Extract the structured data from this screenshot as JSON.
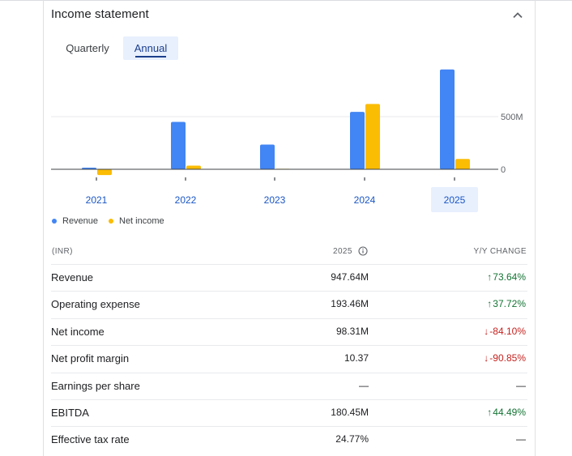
{
  "title": "Income statement",
  "tabs": [
    {
      "label": "Quarterly",
      "selected": false
    },
    {
      "label": "Annual",
      "selected": true
    }
  ],
  "legend": [
    {
      "label": "Revenue",
      "color": "#4285f4"
    },
    {
      "label": "Net income",
      "color": "#fbbc04"
    }
  ],
  "chart_data": {
    "type": "bar",
    "categories": [
      "2021",
      "2022",
      "2023",
      "2024",
      "2025"
    ],
    "selected_category": "2025",
    "series": [
      {
        "name": "Revenue",
        "color": "#4285f4",
        "values": [
          15,
          450,
          235,
          545,
          947.64
        ]
      },
      {
        "name": "Net income",
        "color": "#fbbc04",
        "values": [
          -55,
          35,
          5,
          620,
          98.31
        ]
      }
    ],
    "y_ticks": [
      {
        "value": 500,
        "label": "500M"
      },
      {
        "value": 0,
        "label": "0"
      }
    ],
    "ylim": [
      -70,
      960
    ],
    "units": "M"
  },
  "table": {
    "headers": {
      "label": "(INR)",
      "value": "2025",
      "change": "Y/Y CHANGE"
    },
    "rows": [
      {
        "label": "Revenue",
        "value": "947.64M",
        "change": "73.64%",
        "direction": "up"
      },
      {
        "label": "Operating expense",
        "value": "193.46M",
        "change": "37.72%",
        "direction": "up"
      },
      {
        "label": "Net income",
        "value": "98.31M",
        "change": "-84.10%",
        "direction": "down"
      },
      {
        "label": "Net profit margin",
        "value": "10.37",
        "change": "-90.85%",
        "direction": "down"
      },
      {
        "label": "Earnings per share",
        "value": "—",
        "change": "—",
        "direction": "none"
      },
      {
        "label": "EBITDA",
        "value": "180.45M",
        "change": "44.49%",
        "direction": "up"
      },
      {
        "label": "Effective tax rate",
        "value": "24.77%",
        "change": "—",
        "direction": "none"
      }
    ]
  }
}
